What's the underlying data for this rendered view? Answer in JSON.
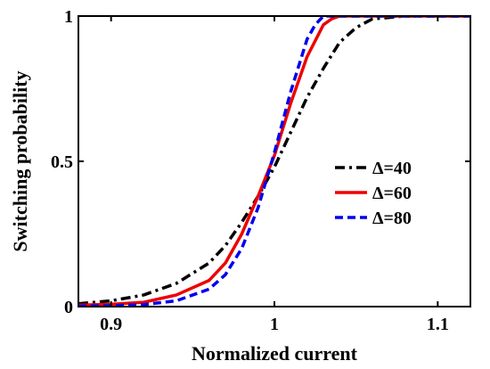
{
  "chart_data": {
    "type": "line",
    "xlabel": "Normalized current",
    "ylabel": "Switching probability",
    "xlim": [
      0.88,
      1.12
    ],
    "ylim": [
      0,
      1
    ],
    "x_ticks": [
      0.9,
      1.0,
      1.1
    ],
    "x_tick_labels": [
      "0.9",
      "1",
      "1.1"
    ],
    "y_ticks": [
      0,
      0.5,
      1
    ],
    "y_tick_labels": [
      "0",
      "0.5",
      "1"
    ],
    "grid": false,
    "legend_position": "right",
    "series": [
      {
        "name": "Δ=40",
        "color": "#000000",
        "dash": "dashdot",
        "x": [
          0.88,
          0.9,
          0.92,
          0.94,
          0.96,
          0.97,
          0.98,
          0.99,
          1.0,
          1.01,
          1.02,
          1.03,
          1.04,
          1.05,
          1.06,
          1.08,
          1.12
        ],
        "y": [
          0.01,
          0.02,
          0.04,
          0.08,
          0.15,
          0.21,
          0.29,
          0.38,
          0.48,
          0.6,
          0.72,
          0.82,
          0.91,
          0.96,
          0.99,
          1.0,
          1.0
        ]
      },
      {
        "name": "Δ=60",
        "color": "#ee0000",
        "dash": "solid",
        "x": [
          0.88,
          0.9,
          0.92,
          0.94,
          0.96,
          0.97,
          0.98,
          0.99,
          1.0,
          1.01,
          1.02,
          1.03,
          1.035,
          1.04,
          1.06,
          1.12
        ],
        "y": [
          0.005,
          0.008,
          0.015,
          0.04,
          0.09,
          0.15,
          0.25,
          0.38,
          0.52,
          0.7,
          0.86,
          0.97,
          0.99,
          1.0,
          1.0,
          1.0
        ]
      },
      {
        "name": "Δ=80",
        "color": "#0000ee",
        "dash": "dashed",
        "x": [
          0.88,
          0.9,
          0.92,
          0.94,
          0.96,
          0.97,
          0.98,
          0.99,
          1.0,
          1.01,
          1.02,
          1.025,
          1.03,
          1.04,
          1.12
        ],
        "y": [
          0.002,
          0.003,
          0.007,
          0.02,
          0.06,
          0.11,
          0.2,
          0.34,
          0.53,
          0.74,
          0.92,
          0.97,
          1.0,
          1.0,
          1.0
        ]
      }
    ]
  }
}
